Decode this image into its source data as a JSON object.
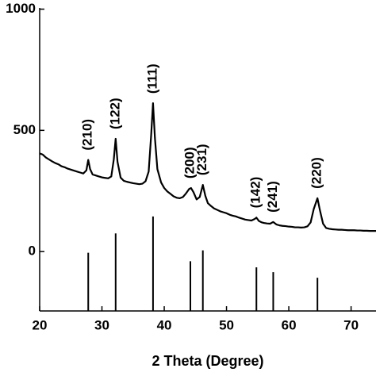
{
  "chart_data": {
    "type": "line",
    "x_label": "2 Theta (Degree)",
    "xlim": [
      20,
      74
    ],
    "xticks": [
      20,
      30,
      40,
      50,
      60,
      70
    ],
    "ylim": [
      -245,
      1005
    ],
    "yticks": [
      0,
      500,
      1000
    ],
    "series": [
      {
        "color": "#000000",
        "x": [
          20,
          20.5,
          21,
          21.5,
          22,
          22.5,
          23,
          23.5,
          24,
          24.5,
          25,
          25.5,
          26,
          26.5,
          27,
          27.5,
          27.8,
          28.1,
          28.5,
          29,
          29.5,
          30,
          30.5,
          31,
          31.5,
          31.9,
          32.2,
          32.5,
          33,
          33.5,
          34,
          34.5,
          35,
          35.5,
          36,
          36.5,
          37,
          37.5,
          37.9,
          38.2,
          38.5,
          38.9,
          39.5,
          40,
          40.5,
          41,
          41.5,
          42,
          42.5,
          43,
          43.5,
          44,
          44.3,
          44.7,
          45.2,
          45.7,
          46.2,
          46.6,
          47,
          47.5,
          48,
          48.5,
          49,
          49.5,
          50,
          50.5,
          51,
          51.5,
          52,
          52.5,
          53,
          53.5,
          54,
          54.5,
          54.8,
          55.2,
          55.7,
          56,
          56.5,
          57,
          57.5,
          58,
          58.5,
          59,
          59.5,
          60,
          60.5,
          61,
          61.5,
          62,
          62.5,
          63,
          63.5,
          64,
          64.6,
          65,
          65.5,
          66,
          66.5,
          67,
          67.5,
          68,
          68.5,
          69,
          69.5,
          70,
          70.5,
          71,
          71.5,
          72,
          72.5,
          73,
          73.5,
          74
        ],
        "values": [
          405,
          400,
          388,
          380,
          372,
          365,
          360,
          352,
          348,
          342,
          338,
          334,
          330,
          326,
          322,
          335,
          378,
          340,
          318,
          314,
          310,
          306,
          304,
          302,
          310,
          380,
          465,
          370,
          305,
          292,
          288,
          285,
          282,
          280,
          278,
          280,
          290,
          330,
          480,
          612,
          470,
          340,
          285,
          262,
          248,
          238,
          228,
          222,
          220,
          225,
          240,
          258,
          262,
          245,
          215,
          225,
          275,
          230,
          200,
          188,
          178,
          172,
          166,
          162,
          158,
          152,
          148,
          145,
          140,
          136,
          132,
          130,
          128,
          134,
          140,
          126,
          120,
          118,
          116,
          115,
          122,
          112,
          108,
          106,
          105,
          103,
          102,
          100,
          100,
          99,
          100,
          104,
          120,
          175,
          220,
          170,
          115,
          97,
          94,
          92,
          91,
          90,
          90,
          89,
          88,
          88,
          88,
          87,
          87,
          86,
          86,
          85,
          85,
          85
        ]
      }
    ],
    "reference": {
      "color": "#000000",
      "x": [
        27.8,
        32.2,
        38.2,
        44.2,
        46.2,
        54.8,
        57.5,
        64.6
      ],
      "values": [
        -5,
        75,
        145,
        -40,
        5,
        -65,
        -85,
        -108
      ],
      "labels": [
        "(210)",
        "(122)",
        "(111)",
        "(200)",
        "(231)",
        "(142)",
        "(241)",
        "(220)"
      ]
    }
  }
}
